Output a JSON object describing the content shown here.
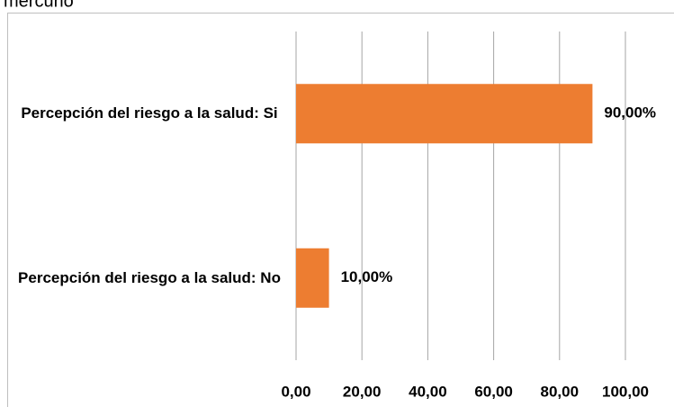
{
  "chart_data": {
    "type": "bar",
    "orientation": "horizontal",
    "title": "mercurio",
    "categories": [
      "Percepción del riesgo a la salud: Si",
      "Percepción del riesgo a la salud: No"
    ],
    "values": [
      90,
      10
    ],
    "value_labels": [
      "90,00%",
      "10,00%"
    ],
    "color": "#ED7D31",
    "xlim": [
      0,
      100
    ],
    "xticks": [
      {
        "value": 0,
        "label": "0,00"
      },
      {
        "value": 20,
        "label": "20,00"
      },
      {
        "value": 40,
        "label": "40,00"
      },
      {
        "value": 60,
        "label": "60,00"
      },
      {
        "value": 80,
        "label": "80,00"
      },
      {
        "value": 100,
        "label": "100,00"
      }
    ],
    "grid": true
  }
}
